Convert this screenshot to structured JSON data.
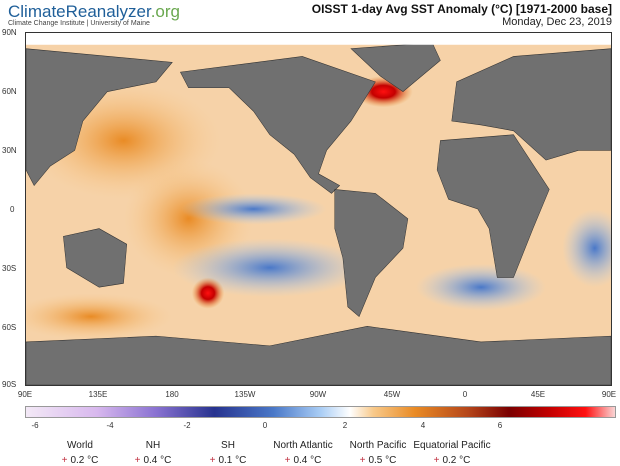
{
  "header": {
    "logo_main": "ClimateReanalyzer",
    "logo_tld": ".org",
    "subtitle": "Climate Change Institute | University of Maine",
    "title": "OISST 1-day Avg SST Anomaly (°C) [1971-2000 base]",
    "date": "Monday, Dec 23, 2019"
  },
  "map": {
    "lat_labels": [
      "90N",
      "60N",
      "30N",
      "0",
      "30S",
      "60S",
      "90S"
    ],
    "lon_labels": [
      "90E",
      "135E",
      "180",
      "135W",
      "90W",
      "45W",
      "0",
      "45E",
      "90E"
    ],
    "land_color": "#707070",
    "ice_color": "#ffffff"
  },
  "colorbar": {
    "ticks": [
      "-6",
      "-4",
      "-2",
      "0",
      "2",
      "4",
      "6"
    ],
    "range": [
      -6,
      6
    ],
    "colors": {
      "min": "#f3e9f6",
      "cold": "#27338f",
      "zero": "#ffffff",
      "warm": "#e98b25",
      "hot": "#ff1010"
    }
  },
  "stats": [
    {
      "region": "World",
      "sign": "+",
      "value": "0.2 °C"
    },
    {
      "region": "NH",
      "sign": "+",
      "value": "0.4 °C"
    },
    {
      "region": "SH",
      "sign": "+",
      "value": "0.1 °C"
    },
    {
      "region": "North Atlantic",
      "sign": "+",
      "value": "0.4 °C"
    },
    {
      "region": "North Pacific",
      "sign": "+",
      "value": "0.5 °C"
    },
    {
      "region": "Equatorial Pacific",
      "sign": "+",
      "value": "0.2 °C"
    }
  ]
}
